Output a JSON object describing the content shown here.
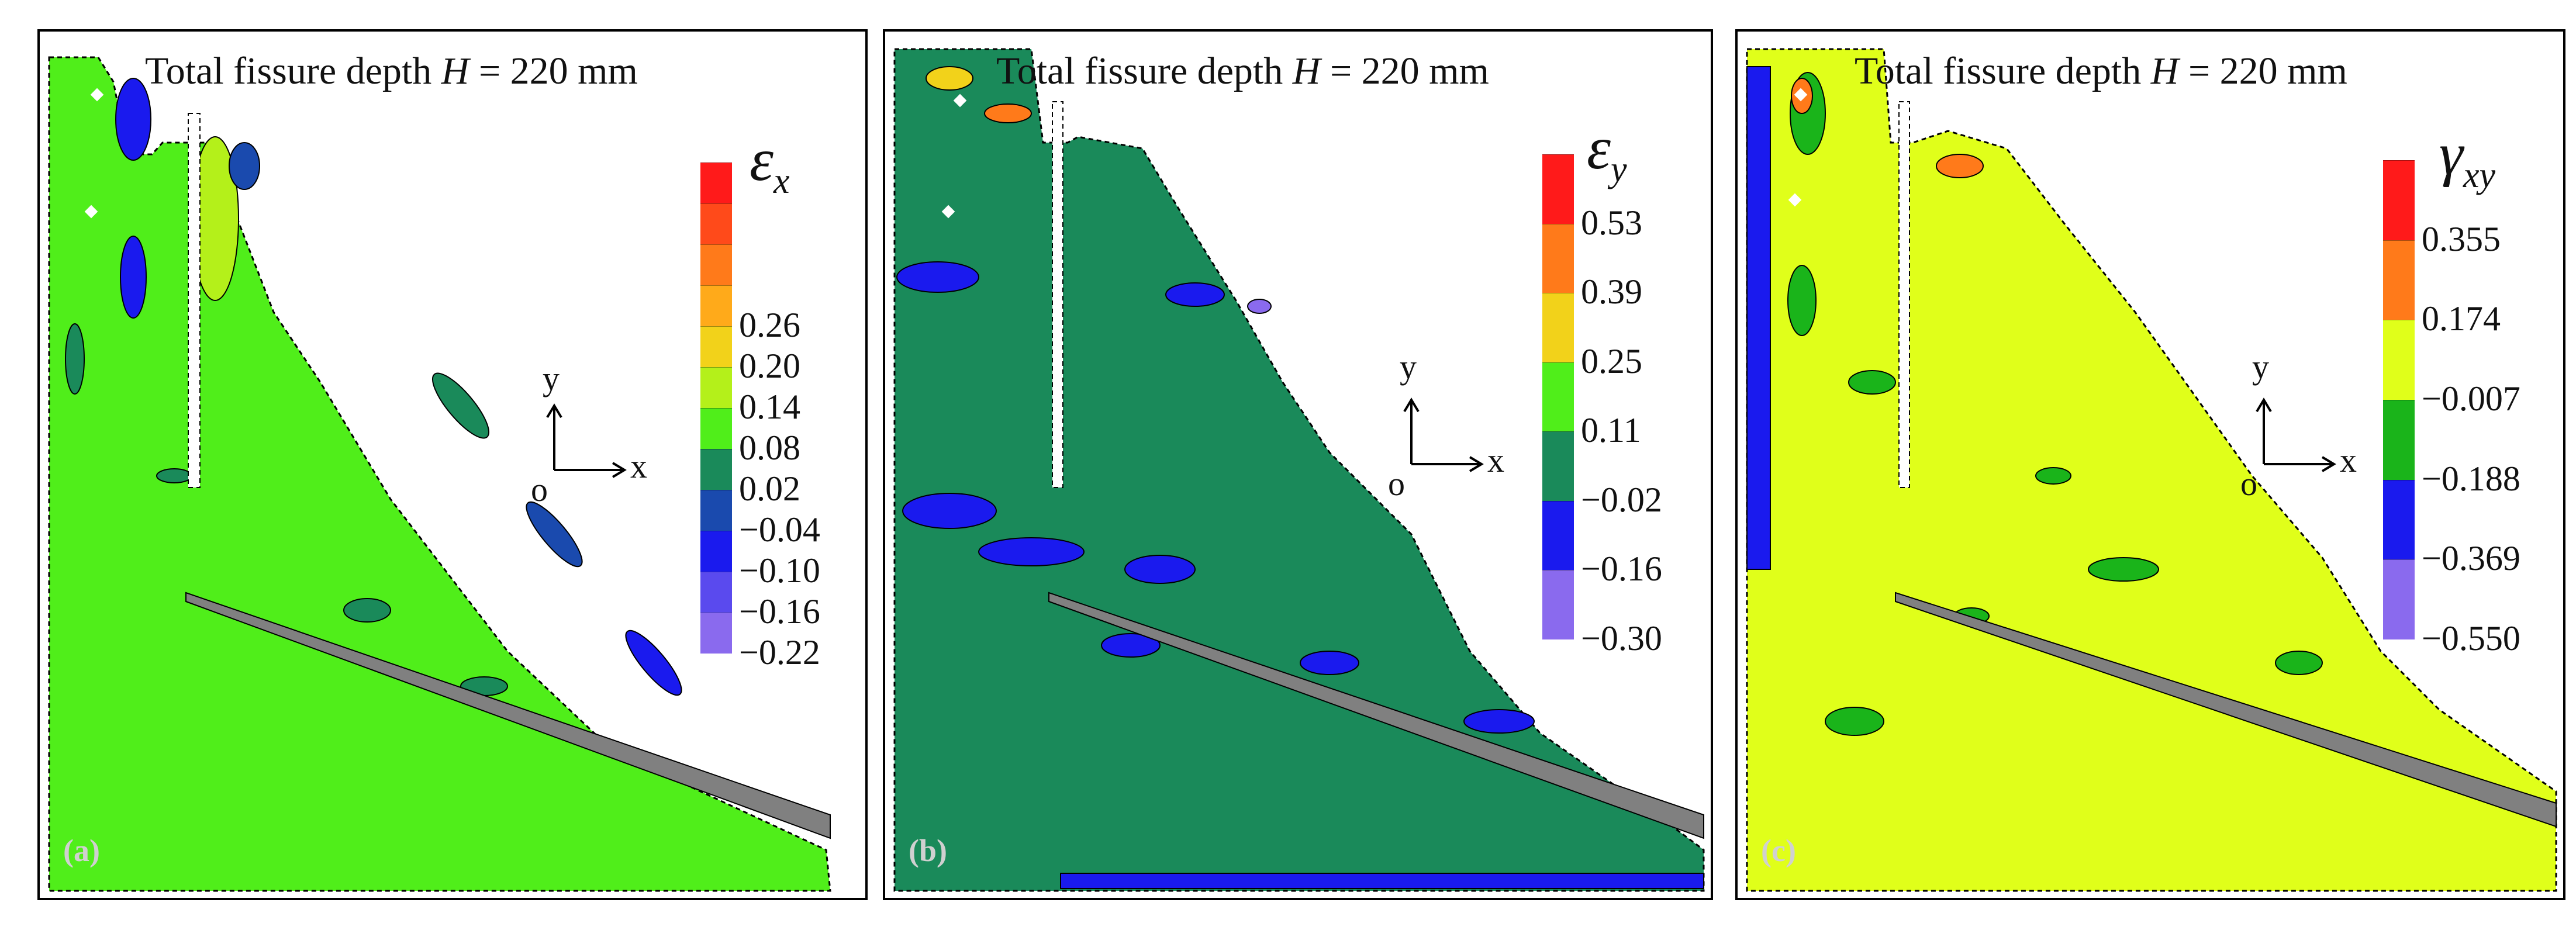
{
  "colors": {
    "red": "#ff1a1a",
    "orange": "#ff7a1a",
    "yellow": "#f2d21a",
    "yellowgreen": "#e0ff1a",
    "lime": "#50ee1a",
    "teal": "#1a8a5a",
    "blue": "#1a1aee",
    "lightblue": "#3a4aee",
    "violet": "#8a6aee",
    "gray": "#808080"
  },
  "panels": [
    {
      "label": "(a)",
      "title_prefix": "Total fissure depth ",
      "title_var": "H",
      "title_suffix": " = 220 mm",
      "symbol": "ε",
      "symbol_sub": "x",
      "axis_x": "x",
      "axis_y": "y",
      "axis_o": "o",
      "legend": {
        "ticks": [
          "0.26",
          "0.20",
          "0.14",
          "0.08",
          "0.02",
          "−0.04",
          "−0.10",
          "−0.16",
          "−0.22"
        ],
        "colors": [
          "#ff1a1a",
          "#ff4a1a",
          "#ff7a1a",
          "#ffaa1a",
          "#f2d21a",
          "#b4f01a",
          "#50ee1a",
          "#1a8a5a",
          "#1a4aae",
          "#1a1aee",
          "#5a4aee",
          "#8a6aee"
        ]
      },
      "background": "#50ee1a"
    },
    {
      "label": "(b)",
      "title_prefix": "Total fissure depth ",
      "title_var": "H",
      "title_suffix": " = 220 mm",
      "symbol": "ε",
      "symbol_sub": "y",
      "axis_x": "x",
      "axis_y": "y",
      "axis_o": "o",
      "legend": {
        "ticks": [
          "0.53",
          "0.39",
          "0.25",
          "0.11",
          "−0.02",
          "−0.16",
          "−0.30"
        ],
        "colors": [
          "#ff1a1a",
          "#ff7a1a",
          "#f2d21a",
          "#50ee1a",
          "#1a8a5a",
          "#1a1aee",
          "#8a6aee"
        ]
      },
      "background": "#1a8a5a"
    },
    {
      "label": "(c)",
      "title_prefix": "Total fissure depth ",
      "title_var": "H",
      "title_suffix": " = 220 mm",
      "symbol": "γ",
      "symbol_sub": "xy",
      "axis_x": "x",
      "axis_y": "y",
      "axis_o": "o",
      "legend": {
        "ticks": [
          "0.355",
          "0.174",
          "−0.007",
          "−0.188",
          "−0.369",
          "−0.550"
        ],
        "colors": [
          "#ff1a1a",
          "#ff7a1a",
          "#e0ff1a",
          "#1ab41a",
          "#1a1aee",
          "#8a6aee"
        ]
      },
      "background": "#e0ff1a"
    }
  ]
}
